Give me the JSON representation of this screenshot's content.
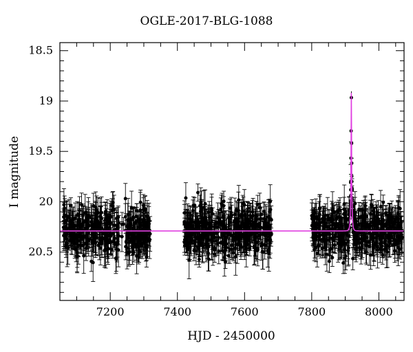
{
  "chart_data": {
    "type": "scatter",
    "title": "OGLE-2017-BLG-1088",
    "xlabel": "HJD - 2450000",
    "ylabel": "I magnitude",
    "xlim": [
      7050,
      8075
    ],
    "ylim": [
      20.98,
      18.42
    ],
    "y_inverted": true,
    "x_ticks": [
      7200,
      7400,
      7600,
      7800,
      8000
    ],
    "y_ticks": [
      18.5,
      19,
      19.5,
      20,
      20.5
    ],
    "y_tick_labels": [
      "18.5",
      "19",
      "19.5",
      "20",
      "20.5"
    ],
    "grid": false,
    "baseline_magnitude": 20.29,
    "model_color": "#e040e0",
    "data_color": "#000000",
    "observing_seasons": [
      {
        "start": 7060,
        "end": 7320
      },
      {
        "start": 7420,
        "end": 7680
      },
      {
        "start": 7800,
        "end": 8070
      }
    ],
    "peak": {
      "x": 7918,
      "y": 18.92
    }
  }
}
